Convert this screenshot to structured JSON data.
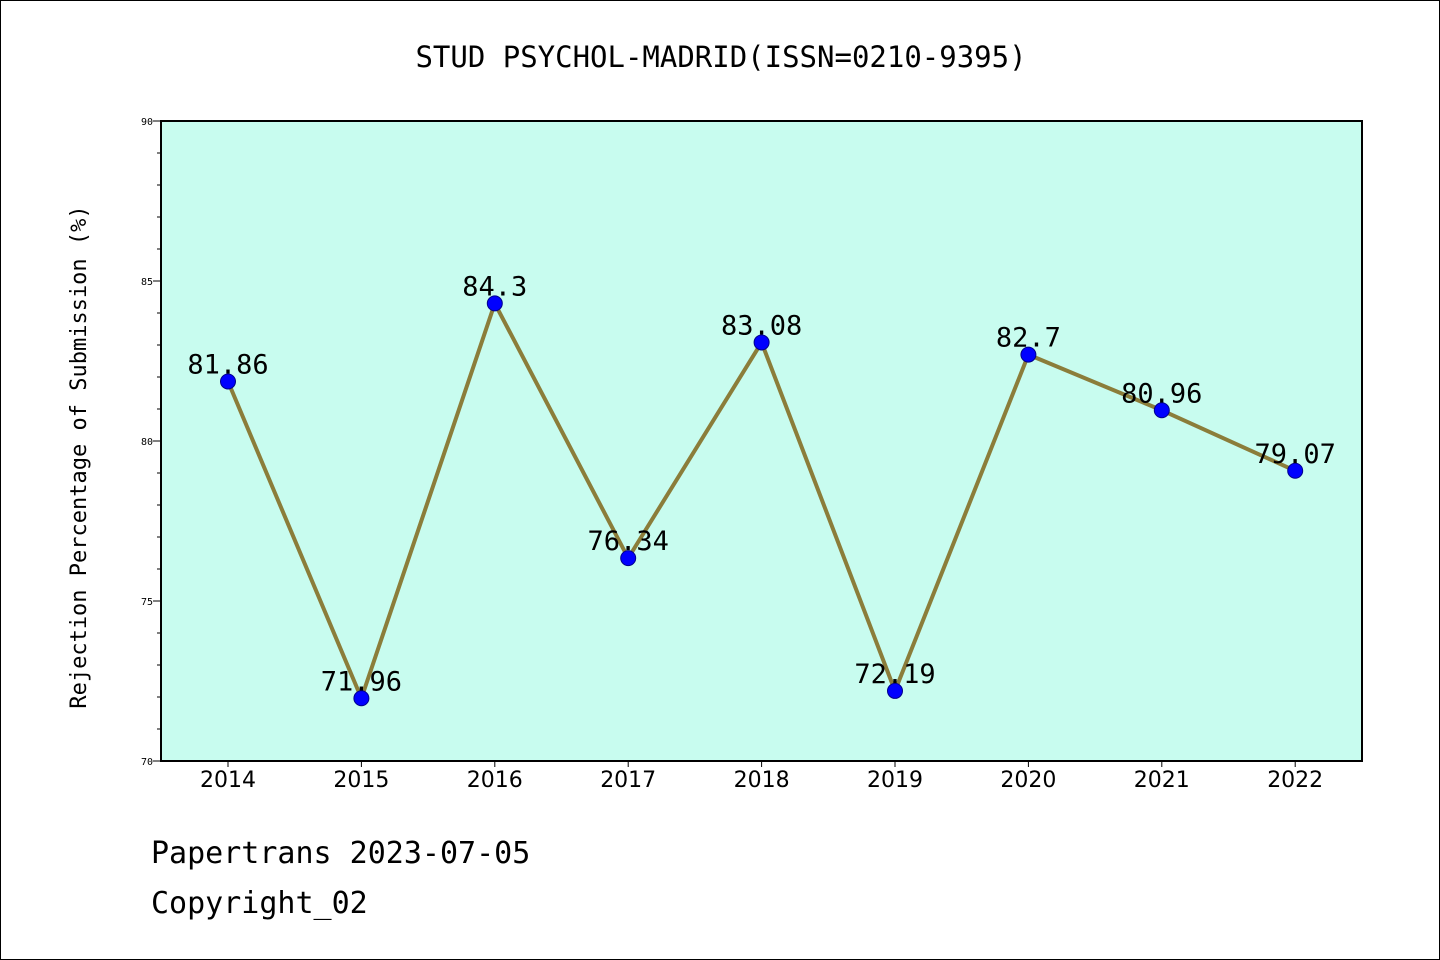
{
  "chart_data": {
    "type": "line",
    "title": "STUD PSYCHOL-MADRID(ISSN=0210-9395)",
    "xlabel": "",
    "ylabel": "Rejection Percentage of Submission (%)",
    "categories": [
      "2014",
      "2015",
      "2016",
      "2017",
      "2018",
      "2019",
      "2020",
      "2021",
      "2022"
    ],
    "series": [
      {
        "values": [
          81.86,
          71.96,
          84.3,
          76.34,
          83.08,
          72.19,
          82.7,
          80.96,
          79.07
        ],
        "labels": [
          "81.86",
          "71.96",
          "84.3",
          "76.34",
          "83.08",
          "72.19",
          "82.7",
          "80.96",
          "79.07"
        ],
        "line_color": "#8b7d3a",
        "marker_color": "#0000ff"
      }
    ],
    "ylim": [
      70,
      90
    ],
    "y_ticks": [
      "70",
      "75",
      "80",
      "85",
      "90"
    ],
    "grid": false,
    "plot_background": "#c8fcef"
  },
  "footer": {
    "line1": "Papertrans 2023-07-05",
    "line2": "Copyright_02"
  }
}
